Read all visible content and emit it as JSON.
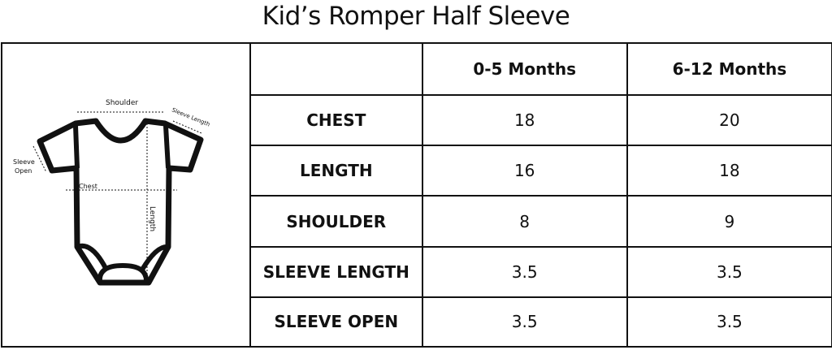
{
  "title": "Kid’s Romper Half Sleeve",
  "illustration": {
    "labels": {
      "shoulder": "Shoulder",
      "sleeve_length": "Sleeve Length",
      "sleeve_open_1": "Sleeve",
      "sleeve_open_2": "Open",
      "chest": "Chest",
      "length": "Length"
    }
  },
  "table": {
    "columns": [
      "",
      "0-5 Months",
      "6-12 Months"
    ],
    "rows": [
      {
        "label": "CHEST",
        "values": [
          "18",
          "20"
        ]
      },
      {
        "label": "LENGTH",
        "values": [
          "16",
          "18"
        ]
      },
      {
        "label": "SHOULDER",
        "values": [
          "8",
          "9"
        ]
      },
      {
        "label": "SLEEVE LENGTH",
        "values": [
          "3.5",
          "3.5"
        ]
      },
      {
        "label": "SLEEVE OPEN",
        "values": [
          "3.5",
          "3.5"
        ]
      }
    ]
  }
}
